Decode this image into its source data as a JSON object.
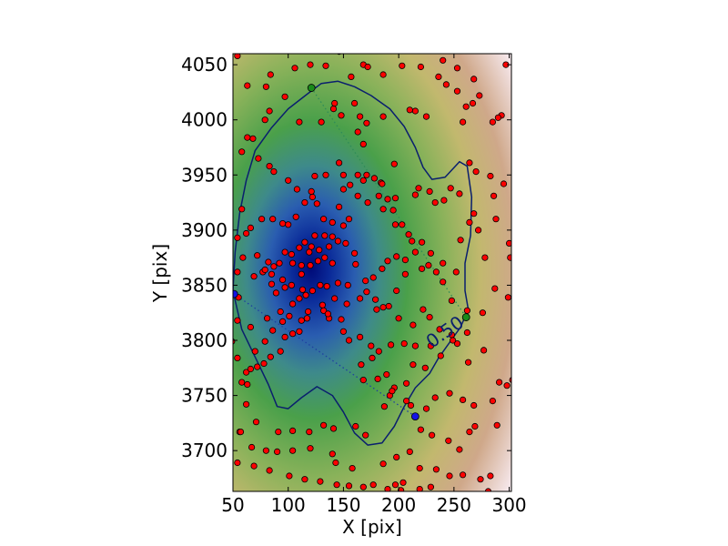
{
  "chart_data": {
    "type": "scatter",
    "title": "",
    "xlabel": "X [pix]",
    "ylabel": "Y [pix]",
    "xlim": [
      50,
      302
    ],
    "ylim": [
      3663,
      4060
    ],
    "xticks": [
      50,
      100,
      150,
      200,
      250,
      300
    ],
    "yticks": [
      3700,
      3750,
      3800,
      3850,
      3900,
      3950,
      4000,
      4050
    ],
    "grid": false,
    "background": "density map: dark blue peak near (108, 3866), green mid, tan to pale pink at edges",
    "colors": {
      "points_fill": "#ff0000",
      "points_edge": "#000000",
      "contour": "#0a1f6e",
      "green_markers": "#1a8a1a",
      "blue_markers": "#1414e6",
      "green_line": "#2e8b57",
      "blue_line": "#1f3f9f"
    },
    "contour": {
      "label": "0.50",
      "label_at": [
        245,
        3803
      ],
      "path": [
        [
          50,
          3845
        ],
        [
          52,
          3880
        ],
        [
          56,
          3915
        ],
        [
          62,
          3945
        ],
        [
          70,
          3972
        ],
        [
          85,
          3993
        ],
        [
          100,
          4010
        ],
        [
          118,
          4024
        ],
        [
          130,
          4033
        ],
        [
          145,
          4035
        ],
        [
          160,
          4030
        ],
        [
          175,
          4022
        ],
        [
          192,
          4010
        ],
        [
          205,
          3994
        ],
        [
          215,
          3975
        ],
        [
          222,
          3957
        ],
        [
          230,
          3946
        ],
        [
          242,
          3948
        ],
        [
          255,
          3962
        ],
        [
          262,
          3958
        ],
        [
          266,
          3930
        ],
        [
          265,
          3895
        ],
        [
          260,
          3870
        ],
        [
          260,
          3845
        ],
        [
          263,
          3828
        ],
        [
          256,
          3812
        ],
        [
          246,
          3798
        ],
        [
          236,
          3784
        ],
        [
          228,
          3770
        ],
        [
          215,
          3757
        ],
        [
          205,
          3740
        ],
        [
          196,
          3722
        ],
        [
          185,
          3707
        ],
        [
          172,
          3705
        ],
        [
          160,
          3716
        ],
        [
          150,
          3735
        ],
        [
          140,
          3750
        ],
        [
          126,
          3758
        ],
        [
          112,
          3748
        ],
        [
          100,
          3738
        ],
        [
          90,
          3740
        ],
        [
          82,
          3760
        ],
        [
          70,
          3785
        ],
        [
          58,
          3810
        ],
        [
          50,
          3845
        ]
      ]
    },
    "green_segment": {
      "points": [
        [
          121,
          4029
        ],
        [
          261,
          3821
        ]
      ]
    },
    "blue_segment": {
      "points": [
        [
          51,
          3842
        ],
        [
          215,
          3731
        ]
      ]
    },
    "points": [
      [
        54,
        4058
      ],
      [
        63,
        4031
      ],
      [
        68,
        3983
      ],
      [
        84,
        4041
      ],
      [
        79,
        4000
      ],
      [
        80,
        4030
      ],
      [
        97,
        4021
      ],
      [
        106,
        4047
      ],
      [
        120,
        4050
      ],
      [
        134,
        4049
      ],
      [
        146,
        4062
      ],
      [
        157,
        4039
      ],
      [
        168,
        4050
      ],
      [
        172,
        4048
      ],
      [
        186,
        4041
      ],
      [
        203,
        4049
      ],
      [
        220,
        4048
      ],
      [
        240,
        4054
      ],
      [
        253,
        4047
      ],
      [
        236,
        4039
      ],
      [
        243,
        4032
      ],
      [
        253,
        4026
      ],
      [
        268,
        4037
      ],
      [
        297,
        4050
      ],
      [
        273,
        4022
      ],
      [
        267,
        4015
      ],
      [
        293,
        4004
      ],
      [
        290,
        4002
      ],
      [
        261,
        4012
      ],
      [
        258,
        3998
      ],
      [
        285,
        3998
      ],
      [
        225,
        4003
      ],
      [
        215,
        4008
      ],
      [
        210,
        4009
      ],
      [
        186,
        4003
      ],
      [
        171,
        3997
      ],
      [
        165,
        4003
      ],
      [
        163,
        3989
      ],
      [
        168,
        3978
      ],
      [
        148,
        4004
      ],
      [
        141,
        4010
      ],
      [
        142,
        4015
      ],
      [
        160,
        4015
      ],
      [
        130,
        3998
      ],
      [
        110,
        3998
      ],
      [
        83,
        4008
      ],
      [
        63,
        3984
      ],
      [
        58,
        3971
      ],
      [
        73,
        3965
      ],
      [
        83,
        3958
      ],
      [
        87,
        3953
      ],
      [
        100,
        3945
      ],
      [
        108,
        3937
      ],
      [
        121,
        3935
      ],
      [
        124,
        3949
      ],
      [
        134,
        3950
      ],
      [
        146,
        3961
      ],
      [
        150,
        3950
      ],
      [
        163,
        3950
      ],
      [
        171,
        3950
      ],
      [
        178,
        3947
      ],
      [
        184,
        3943
      ],
      [
        185,
        3942
      ],
      [
        196,
        3960
      ],
      [
        197,
        3929
      ],
      [
        215,
        3932
      ],
      [
        218,
        3938
      ],
      [
        228,
        3935
      ],
      [
        233,
        3925
      ],
      [
        241,
        3927
      ],
      [
        247,
        3938
      ],
      [
        255,
        3933
      ],
      [
        264,
        3961
      ],
      [
        270,
        3953
      ],
      [
        283,
        3949
      ],
      [
        295,
        3942
      ],
      [
        286,
        3931
      ],
      [
        268,
        3915
      ],
      [
        264,
        3907
      ],
      [
        256,
        3891
      ],
      [
        272,
        3900
      ],
      [
        288,
        3910
      ],
      [
        278,
        3875
      ],
      [
        287,
        3847
      ],
      [
        300,
        3888
      ],
      [
        301,
        3875
      ],
      [
        299,
        3839
      ],
      [
        276,
        3825
      ],
      [
        262,
        3807
      ],
      [
        248,
        3805
      ],
      [
        262,
        3827
      ],
      [
        248,
        3836
      ],
      [
        240,
        3853
      ],
      [
        234,
        3862
      ],
      [
        227,
        3868
      ],
      [
        221,
        3865
      ],
      [
        215,
        3880
      ],
      [
        212,
        3890
      ],
      [
        203,
        3905
      ],
      [
        195,
        3918
      ],
      [
        190,
        3928
      ],
      [
        182,
        3931
      ],
      [
        168,
        3945
      ],
      [
        156,
        3941
      ],
      [
        150,
        3937
      ],
      [
        146,
        3921
      ],
      [
        155,
        3910
      ],
      [
        150,
        3904
      ],
      [
        140,
        3907
      ],
      [
        132,
        3910
      ],
      [
        126,
        3924
      ],
      [
        122,
        3930
      ],
      [
        115,
        3925
      ],
      [
        107,
        3912
      ],
      [
        100,
        3905
      ],
      [
        95,
        3906
      ],
      [
        86,
        3910
      ],
      [
        76,
        3910
      ],
      [
        66,
        3902
      ],
      [
        62,
        3897
      ],
      [
        58,
        3919
      ],
      [
        54,
        3893
      ],
      [
        59,
        3875
      ],
      [
        54,
        3862
      ],
      [
        55,
        3839
      ],
      [
        72,
        3877
      ],
      [
        69,
        3858
      ],
      [
        77,
        3862
      ],
      [
        85,
        3851
      ],
      [
        89,
        3843
      ],
      [
        97,
        3848
      ],
      [
        104,
        3833
      ],
      [
        110,
        3838
      ],
      [
        113,
        3846
      ],
      [
        116,
        3841
      ],
      [
        122,
        3845
      ],
      [
        129,
        3850
      ],
      [
        135,
        3849
      ],
      [
        145,
        3852
      ],
      [
        154,
        3850
      ],
      [
        165,
        3838
      ],
      [
        170,
        3854
      ],
      [
        179,
        3837
      ],
      [
        191,
        3831
      ],
      [
        200,
        3820
      ],
      [
        213,
        3814
      ],
      [
        222,
        3828
      ],
      [
        228,
        3821
      ],
      [
        237,
        3810
      ],
      [
        238,
        3786
      ],
      [
        224,
        3775
      ],
      [
        213,
        3778
      ],
      [
        207,
        3761
      ],
      [
        196,
        3757
      ],
      [
        192,
        3750
      ],
      [
        187,
        3740
      ],
      [
        189,
        3769
      ],
      [
        176,
        3784
      ],
      [
        165,
        3803
      ],
      [
        155,
        3800
      ],
      [
        150,
        3808
      ],
      [
        148,
        3819
      ],
      [
        137,
        3820
      ],
      [
        132,
        3827
      ],
      [
        131,
        3832
      ],
      [
        118,
        3826
      ],
      [
        112,
        3818
      ],
      [
        104,
        3806
      ],
      [
        97,
        3803
      ],
      [
        93,
        3790
      ],
      [
        84,
        3785
      ],
      [
        78,
        3779
      ],
      [
        72,
        3776
      ],
      [
        62,
        3771
      ],
      [
        54,
        3784
      ],
      [
        49,
        3799
      ],
      [
        54,
        3818
      ],
      [
        66,
        3812
      ],
      [
        81,
        3820
      ],
      [
        93,
        3826
      ],
      [
        101,
        3822
      ],
      [
        110,
        3808
      ],
      [
        117,
        3820
      ],
      [
        136,
        3824
      ],
      [
        142,
        3838
      ],
      [
        153,
        3833
      ],
      [
        180,
        3828
      ],
      [
        186,
        3830
      ],
      [
        198,
        3845
      ],
      [
        206,
        3860
      ],
      [
        206,
        3873
      ],
      [
        198,
        3876
      ],
      [
        190,
        3872
      ],
      [
        185,
        3865
      ],
      [
        177,
        3857
      ],
      [
        171,
        3844
      ],
      [
        161,
        3869
      ],
      [
        160,
        3879
      ],
      [
        152,
        3888
      ],
      [
        145,
        3890
      ],
      [
        140,
        3894
      ],
      [
        133,
        3895
      ],
      [
        124,
        3895
      ],
      [
        119,
        3880
      ],
      [
        112,
        3868
      ],
      [
        103,
        3878
      ],
      [
        97,
        3880
      ],
      [
        92,
        3870
      ],
      [
        87,
        3867
      ],
      [
        82,
        3871
      ],
      [
        79,
        3864
      ],
      [
        85,
        3860
      ],
      [
        95,
        3855
      ],
      [
        103,
        3850
      ],
      [
        112,
        3860
      ],
      [
        120,
        3868
      ],
      [
        127,
        3872
      ],
      [
        133,
        3875
      ],
      [
        140,
        3870
      ],
      [
        137,
        3885
      ],
      [
        128,
        3882
      ],
      [
        121,
        3885
      ],
      [
        115,
        3889
      ],
      [
        110,
        3884
      ],
      [
        104,
        3870
      ],
      [
        163,
        3931
      ],
      [
        172,
        3925
      ],
      [
        186,
        3919
      ],
      [
        197,
        3905
      ],
      [
        209,
        3896
      ],
      [
        221,
        3889
      ],
      [
        229,
        3879
      ],
      [
        240,
        3870
      ],
      [
        252,
        3862
      ],
      [
        277,
        3791
      ],
      [
        263,
        3780
      ],
      [
        253,
        3797
      ],
      [
        249,
        3800
      ],
      [
        229,
        3795
      ],
      [
        215,
        3795
      ],
      [
        205,
        3797
      ],
      [
        193,
        3796
      ],
      [
        182,
        3790
      ],
      [
        175,
        3795
      ],
      [
        166,
        3778
      ],
      [
        168,
        3764
      ],
      [
        181,
        3765
      ],
      [
        194,
        3754
      ],
      [
        207,
        3745
      ],
      [
        211,
        3741
      ],
      [
        225,
        3738
      ],
      [
        233,
        3748
      ],
      [
        246,
        3752
      ],
      [
        258,
        3746
      ],
      [
        268,
        3741
      ],
      [
        285,
        3745
      ],
      [
        291,
        3762
      ],
      [
        303,
        3764
      ],
      [
        298,
        3759
      ],
      [
        289,
        3723
      ],
      [
        269,
        3722
      ],
      [
        264,
        3717
      ],
      [
        255,
        3701
      ],
      [
        245,
        3709
      ],
      [
        230,
        3714
      ],
      [
        220,
        3719
      ],
      [
        210,
        3699
      ],
      [
        198,
        3694
      ],
      [
        186,
        3688
      ],
      [
        170,
        3714
      ],
      [
        161,
        3722
      ],
      [
        141,
        3720
      ],
      [
        132,
        3723
      ],
      [
        119,
        3717
      ],
      [
        104,
        3718
      ],
      [
        91,
        3717
      ],
      [
        71,
        3726
      ],
      [
        56,
        3717
      ],
      [
        67,
        3703
      ],
      [
        80,
        3700
      ],
      [
        90,
        3699
      ],
      [
        104,
        3700
      ],
      [
        120,
        3702
      ],
      [
        140,
        3697
      ],
      [
        143,
        3689
      ],
      [
        158,
        3684
      ],
      [
        168,
        3667
      ],
      [
        190,
        3665
      ],
      [
        197,
        3669
      ],
      [
        204,
        3671
      ],
      [
        219,
        3684
      ],
      [
        234,
        3683
      ],
      [
        246,
        3677
      ],
      [
        258,
        3678
      ],
      [
        274,
        3674
      ],
      [
        283,
        3677
      ],
      [
        281,
        3663
      ],
      [
        229,
        3667
      ],
      [
        219,
        3665
      ],
      [
        202,
        3664
      ],
      [
        177,
        3669
      ],
      [
        155,
        3668
      ],
      [
        144,
        3669
      ],
      [
        129,
        3672
      ],
      [
        115,
        3674
      ],
      [
        101,
        3677
      ],
      [
        83,
        3682
      ],
      [
        69,
        3686
      ],
      [
        54,
        3689
      ],
      [
        57,
        3717
      ],
      [
        62,
        3742
      ],
      [
        63,
        3760
      ],
      [
        58,
        3762
      ],
      [
        66,
        3774
      ],
      [
        70,
        3790
      ],
      [
        79,
        3799
      ],
      [
        86,
        3809
      ],
      [
        95,
        3817
      ]
    ],
    "green_markers": [
      [
        121,
        4029
      ],
      [
        261,
        3821
      ]
    ],
    "blue_markers": [
      [
        51,
        3842
      ],
      [
        215,
        3731
      ]
    ]
  }
}
